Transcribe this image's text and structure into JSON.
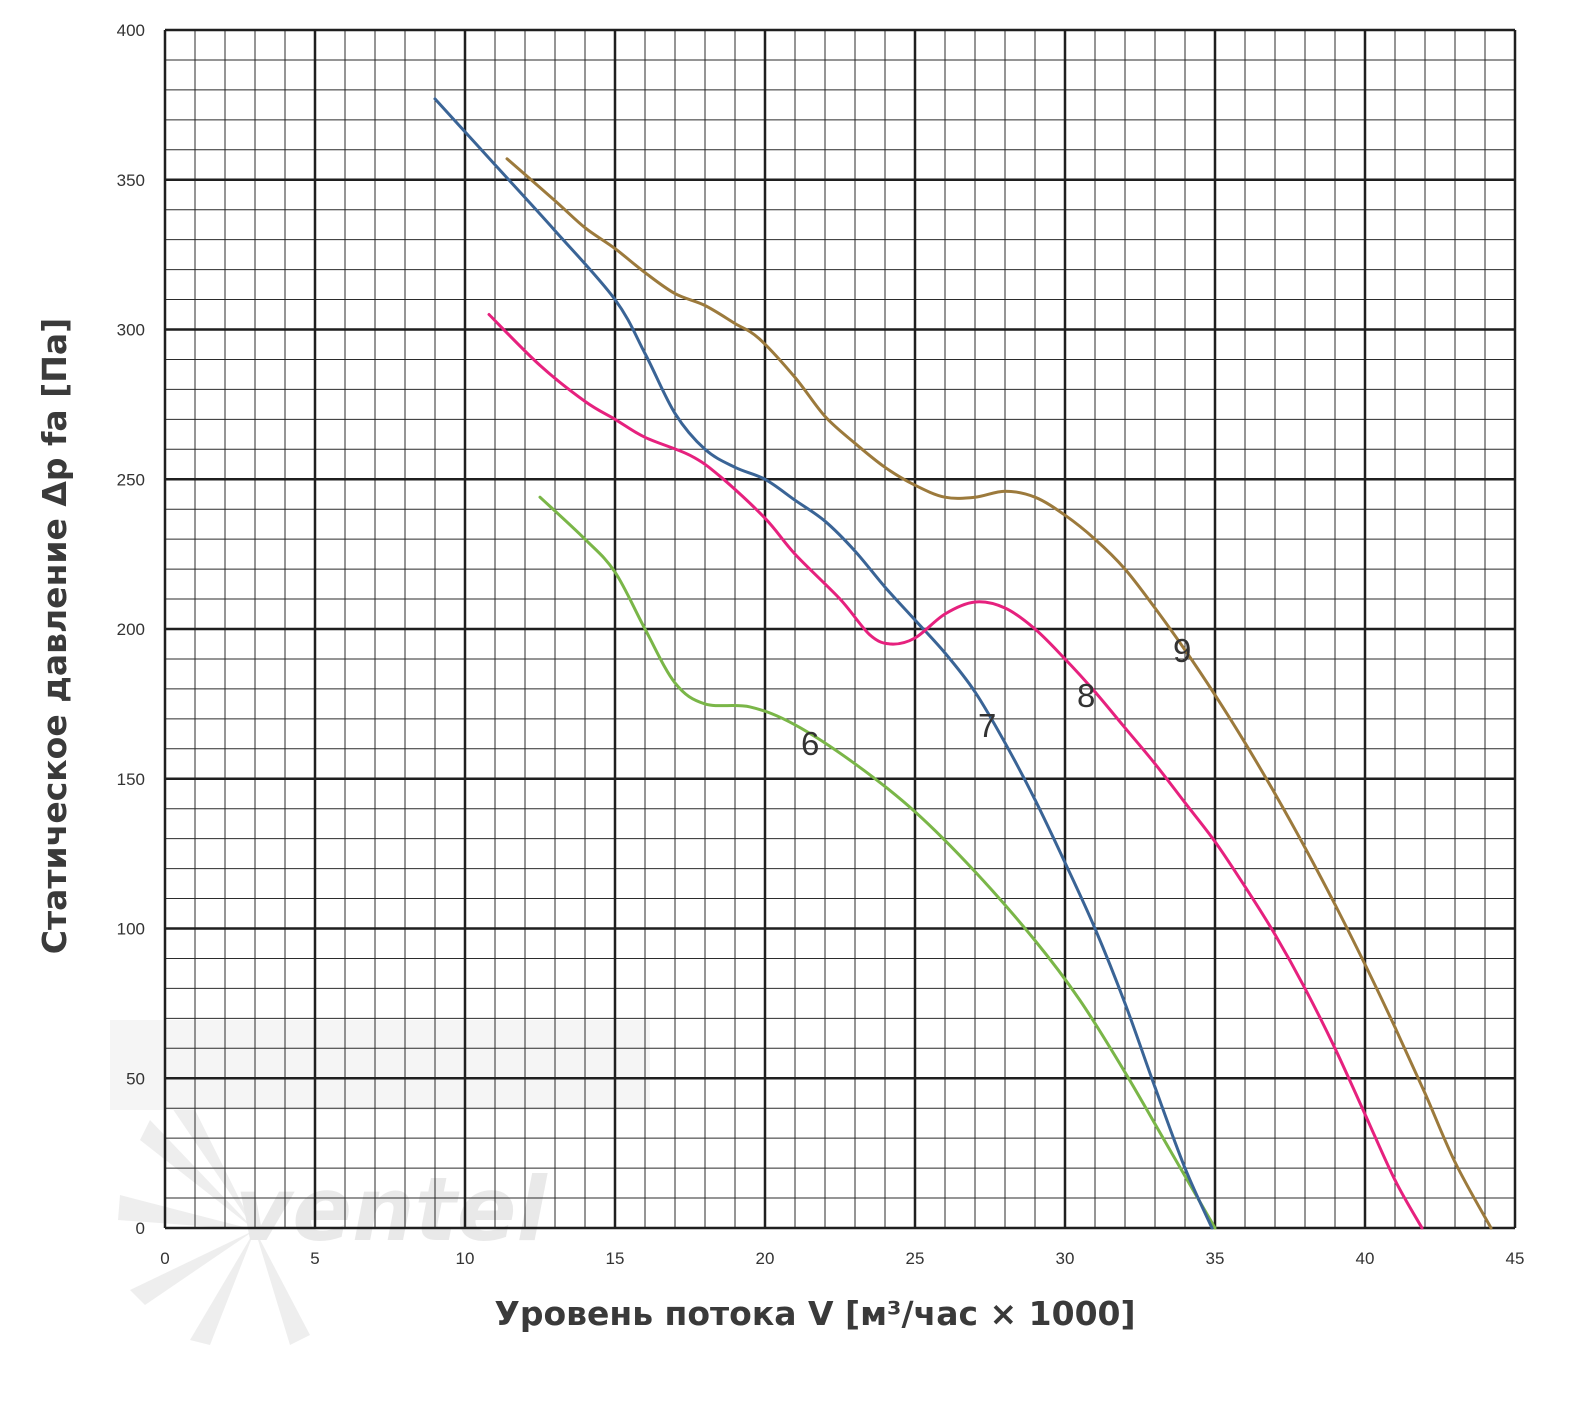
{
  "chart_data": {
    "type": "line",
    "xlabel": "Уровень потока V [м³/час × 1000]",
    "ylabel": "Статическое давление Δp fa [Па]",
    "xlim": [
      0,
      45
    ],
    "ylim": [
      0,
      400
    ],
    "x_ticks": [
      0,
      5,
      10,
      15,
      20,
      25,
      30,
      35,
      40,
      45
    ],
    "y_ticks": [
      0,
      50,
      100,
      150,
      200,
      250,
      300,
      350,
      400
    ],
    "x_tick_labels": [
      "0",
      "5",
      "10",
      "15",
      "20",
      "25",
      "30",
      "35",
      "40",
      "45"
    ],
    "y_tick_labels": [
      "0",
      "50",
      "100",
      "150",
      "200",
      "250",
      "300",
      "350",
      "400"
    ],
    "x_minor_step": 1,
    "y_minor_step": 10,
    "grid": true,
    "watermark": "ventel",
    "series": [
      {
        "name": "6",
        "color": "#7ab648",
        "label_at": [
          21.2,
          158
        ],
        "points": [
          [
            12.5,
            244
          ],
          [
            14,
            230
          ],
          [
            15,
            219
          ],
          [
            16,
            200
          ],
          [
            17,
            182
          ],
          [
            18,
            175
          ],
          [
            19.5,
            174
          ],
          [
            21,
            168
          ],
          [
            23,
            155
          ],
          [
            25,
            139
          ],
          [
            27,
            119
          ],
          [
            29,
            96
          ],
          [
            30.5,
            76
          ],
          [
            32,
            52
          ],
          [
            33.5,
            26
          ],
          [
            35,
            0
          ]
        ]
      },
      {
        "name": "7",
        "color": "#3a6496",
        "label_at": [
          27.1,
          164
        ],
        "points": [
          [
            9,
            377
          ],
          [
            11,
            355
          ],
          [
            13,
            333
          ],
          [
            15,
            310
          ],
          [
            16,
            292
          ],
          [
            17,
            272
          ],
          [
            18,
            260
          ],
          [
            19,
            254
          ],
          [
            20,
            250
          ],
          [
            21,
            243
          ],
          [
            22,
            236
          ],
          [
            23,
            226
          ],
          [
            24,
            214
          ],
          [
            25,
            203
          ],
          [
            26,
            192
          ],
          [
            27,
            179
          ],
          [
            28,
            162
          ],
          [
            29,
            143
          ],
          [
            30,
            122
          ],
          [
            31,
            100
          ],
          [
            32,
            75
          ],
          [
            33,
            47
          ],
          [
            34,
            20
          ],
          [
            34.9,
            0
          ]
        ]
      },
      {
        "name": "8",
        "color": "#e6217e",
        "label_at": [
          30.4,
          174
        ],
        "points": [
          [
            10.8,
            305
          ],
          [
            12.5,
            288
          ],
          [
            14,
            276
          ],
          [
            15,
            270
          ],
          [
            16,
            264
          ],
          [
            17.5,
            258
          ],
          [
            18.5,
            251
          ],
          [
            20,
            237
          ],
          [
            21,
            225
          ],
          [
            22.5,
            210
          ],
          [
            23.5,
            198
          ],
          [
            24.2,
            195
          ],
          [
            25,
            197
          ],
          [
            26,
            205
          ],
          [
            27,
            209
          ],
          [
            28,
            207
          ],
          [
            29,
            200
          ],
          [
            30,
            190
          ],
          [
            31,
            179
          ],
          [
            32,
            167
          ],
          [
            33,
            155
          ],
          [
            34,
            142
          ],
          [
            35,
            129
          ],
          [
            36,
            114
          ],
          [
            37,
            98
          ],
          [
            38,
            80
          ],
          [
            39,
            60
          ],
          [
            40,
            38
          ],
          [
            41,
            16
          ],
          [
            41.9,
            0
          ]
        ]
      },
      {
        "name": "9",
        "color": "#9c7a3c",
        "label_at": [
          33.6,
          189
        ],
        "points": [
          [
            11.4,
            357
          ],
          [
            13,
            343
          ],
          [
            14,
            334
          ],
          [
            15,
            327
          ],
          [
            16,
            319
          ],
          [
            17,
            312
          ],
          [
            18,
            308
          ],
          [
            19,
            302
          ],
          [
            19.8,
            297
          ],
          [
            21,
            284
          ],
          [
            22,
            271
          ],
          [
            23,
            262
          ],
          [
            24,
            254
          ],
          [
            25,
            248
          ],
          [
            26,
            244
          ],
          [
            27,
            244
          ],
          [
            28,
            246
          ],
          [
            29,
            244
          ],
          [
            30,
            238
          ],
          [
            31,
            230
          ],
          [
            32,
            220
          ],
          [
            33,
            207
          ],
          [
            34,
            193
          ],
          [
            35,
            178
          ],
          [
            36,
            162
          ],
          [
            37,
            145
          ],
          [
            38,
            127
          ],
          [
            39,
            108
          ],
          [
            40,
            88
          ],
          [
            41,
            67
          ],
          [
            42,
            45
          ],
          [
            43,
            22
          ],
          [
            44.2,
            0
          ]
        ]
      }
    ]
  }
}
